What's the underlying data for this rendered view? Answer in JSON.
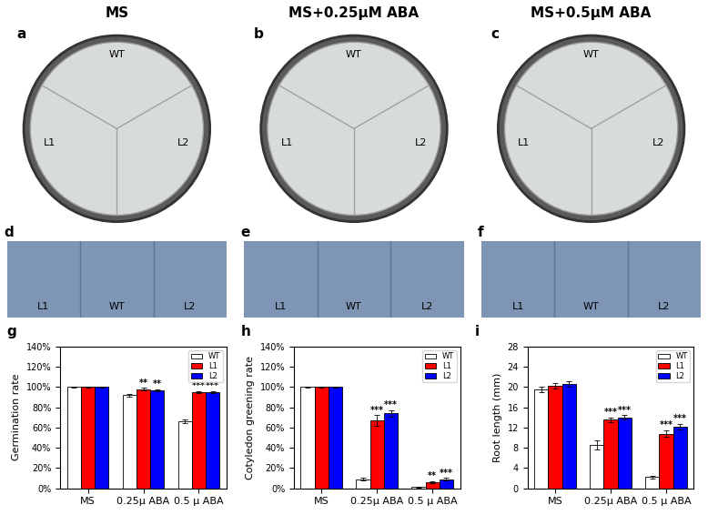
{
  "panels": {
    "headers": [
      "MS",
      "MS+0.25μM ABA",
      "MS+0.5μM ABA"
    ],
    "plates": [
      {
        "letter": "a",
        "labels": {
          "top": "WT",
          "left": "L1",
          "right": "L2"
        }
      },
      {
        "letter": "b",
        "labels": {
          "top": "WT",
          "left": "L1",
          "right": "L2"
        }
      },
      {
        "letter": "c",
        "labels": {
          "top": "WT",
          "left": "L1",
          "right": "L2"
        }
      }
    ],
    "seedlings": [
      {
        "letter": "d",
        "labels": [
          "L1",
          "WT",
          "L2"
        ]
      },
      {
        "letter": "e",
        "labels": [
          "L1",
          "WT",
          "L2"
        ]
      },
      {
        "letter": "f",
        "labels": [
          "L1",
          "WT",
          "L2"
        ]
      }
    ]
  },
  "chart_data": [
    {
      "type": "bar",
      "letter": "g",
      "y_label": "Germination rate",
      "categories": [
        "MS",
        "0.25μ ABA",
        "0.5 μ ABA"
      ],
      "series": [
        {
          "name": "WT",
          "color": "#ffffff",
          "values": [
            100,
            92,
            66
          ],
          "errors": [
            0.5,
            1.5,
            1.5
          ],
          "significance": [
            null,
            null,
            null
          ]
        },
        {
          "name": "L1",
          "color": "#ff0000",
          "values": [
            100,
            98,
            95
          ],
          "errors": [
            0.5,
            1.0,
            1.0
          ],
          "significance": [
            null,
            "**",
            "***"
          ]
        },
        {
          "name": "L2",
          "color": "#0000ff",
          "values": [
            100,
            97,
            95
          ],
          "errors": [
            0.5,
            1.0,
            1.0
          ],
          "significance": [
            null,
            "**",
            "***"
          ]
        }
      ],
      "ylim": [
        0,
        140
      ],
      "yticks": [
        {
          "value": 0,
          "label": "0%"
        },
        {
          "value": 20,
          "label": "20%"
        },
        {
          "value": 40,
          "label": "40%"
        },
        {
          "value": 60,
          "label": "60%"
        },
        {
          "value": 80,
          "label": "80%"
        },
        {
          "value": 100,
          "label": "100%"
        },
        {
          "value": 120,
          "label": "120%"
        },
        {
          "value": 140,
          "label": "140%"
        }
      ],
      "legend": "upper right"
    },
    {
      "type": "bar",
      "letter": "h",
      "y_label": "Cotyledon greening rate",
      "categories": [
        "MS",
        "0.25μ ABA",
        "0.5 μ ABA"
      ],
      "series": [
        {
          "name": "WT",
          "color": "#ffffff",
          "values": [
            100,
            9,
            1
          ],
          "errors": [
            0.5,
            1.0,
            0.5
          ],
          "significance": [
            null,
            null,
            null
          ]
        },
        {
          "name": "L1",
          "color": "#ff0000",
          "values": [
            100,
            67,
            6
          ],
          "errors": [
            0.5,
            5.0,
            1.0
          ],
          "significance": [
            null,
            "***",
            "**"
          ]
        },
        {
          "name": "L2",
          "color": "#0000ff",
          "values": [
            100,
            74,
            9
          ],
          "errors": [
            0.5,
            3.0,
            1.0
          ],
          "significance": [
            null,
            "***",
            "***"
          ]
        }
      ],
      "ylim": [
        0,
        140
      ],
      "yticks": [
        {
          "value": 0,
          "label": "0%"
        },
        {
          "value": 20,
          "label": "20%"
        },
        {
          "value": 40,
          "label": "40%"
        },
        {
          "value": 60,
          "label": "60%"
        },
        {
          "value": 80,
          "label": "80%"
        },
        {
          "value": 100,
          "label": "100%"
        },
        {
          "value": 120,
          "label": "120%"
        },
        {
          "value": 140,
          "label": "140%"
        }
      ],
      "legend": "upper right"
    },
    {
      "type": "bar",
      "letter": "i",
      "y_label": "Root length (mm)",
      "categories": [
        "MS",
        "0.25μ ABA",
        "0.5 μ ABA"
      ],
      "series": [
        {
          "name": "WT",
          "color": "#ffffff",
          "values": [
            19.5,
            8.5,
            2.2
          ],
          "errors": [
            0.6,
            0.9,
            0.3
          ],
          "significance": [
            null,
            null,
            null
          ]
        },
        {
          "name": "L1",
          "color": "#ff0000",
          "values": [
            20.2,
            13.5,
            10.8
          ],
          "errors": [
            0.5,
            0.4,
            0.6
          ],
          "significance": [
            null,
            "***",
            "***"
          ]
        },
        {
          "name": "L2",
          "color": "#0000ff",
          "values": [
            20.6,
            14.0,
            12.2
          ],
          "errors": [
            0.5,
            0.4,
            0.5
          ],
          "significance": [
            null,
            "***",
            "***"
          ]
        }
      ],
      "ylim": [
        0,
        28
      ],
      "yticks": [
        0,
        4,
        8,
        12,
        16,
        20,
        24,
        28
      ],
      "legend": "upper right"
    }
  ]
}
